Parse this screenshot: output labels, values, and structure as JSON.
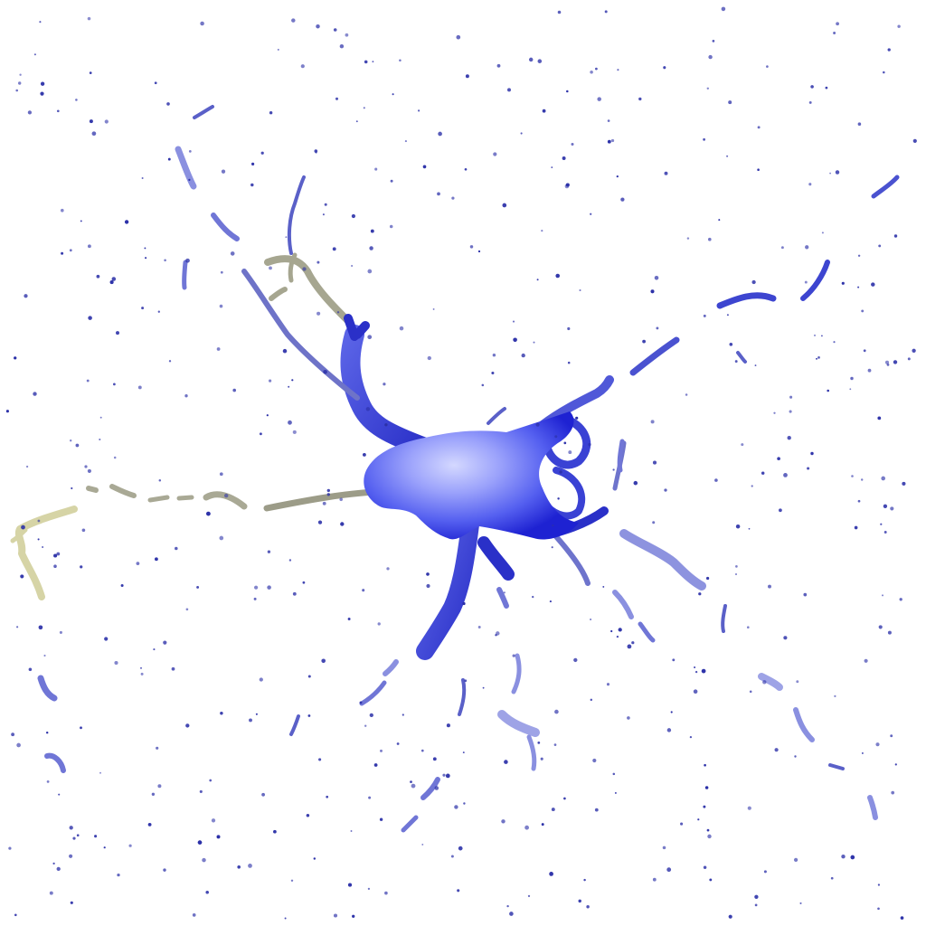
{
  "image": {
    "subject": "neuron-cell",
    "background_color": "#ffffff",
    "colors": {
      "soma_core": "#c7ccff",
      "soma_mid": "#6f78f6",
      "soma_edge": "#1f22d6",
      "process_blue": "#4a52d8",
      "process_light": "#8f96e8",
      "process_grey": "#a8a894",
      "process_yellow": "#d2d1a0",
      "puncta": "#2b30a8"
    }
  }
}
